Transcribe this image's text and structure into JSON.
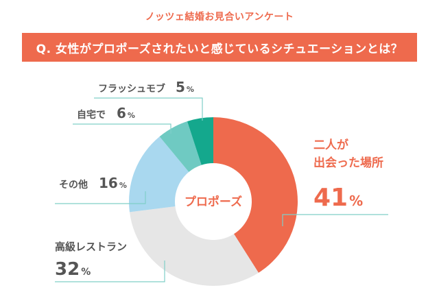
{
  "header": {
    "survey_title": "ノッツェ結婚お見合いアンケート",
    "question": "Q. 女性がプロポーズされたいと感じているシチュエーションとは？"
  },
  "chart_data": {
    "type": "pie",
    "center_label": "プロポーズ",
    "categories": [
      "二人が出会った場所",
      "高級レストラン",
      "その他",
      "自宅で",
      "フラッシュモブ"
    ],
    "label_lines": [
      [
        "二人が",
        "出会った場所"
      ],
      [
        "高級レストラン"
      ],
      [
        "その他"
      ],
      [
        "自宅で"
      ],
      [
        "フラッシュモブ"
      ]
    ],
    "values": [
      41,
      32,
      16,
      6,
      5
    ],
    "unit": "%",
    "colors": [
      "#ee6a4d",
      "#e6e6e6",
      "#a9d8ef",
      "#6fcac2",
      "#14a88d"
    ]
  }
}
